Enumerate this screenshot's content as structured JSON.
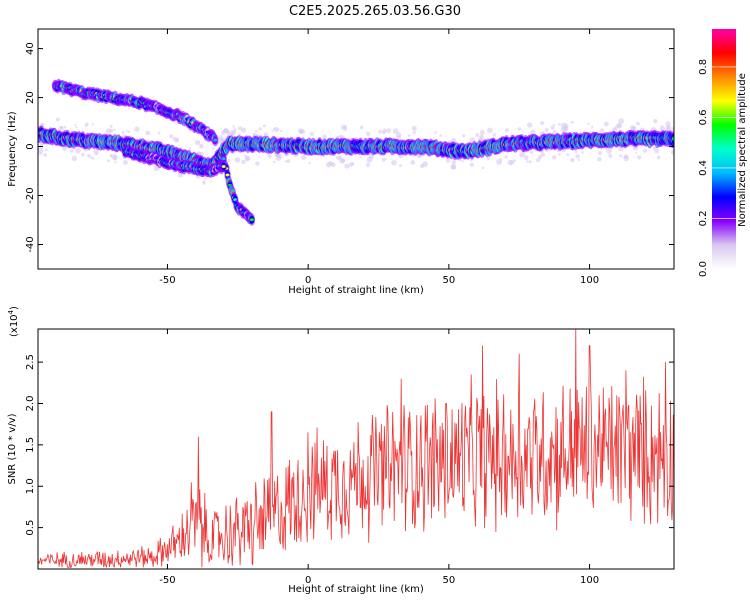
{
  "title": "C2E5.2025.265.03.56.G30",
  "chart_data": [
    {
      "type": "heatmap",
      "xlabel": "Height of straight line (km)",
      "ylabel": "Frequency (Hz)",
      "xlim": [
        -96,
        130
      ],
      "ylim": [
        -50,
        48
      ],
      "xticks": [
        -50,
        0,
        50,
        100
      ],
      "yticks": [
        -40,
        -20,
        0,
        20,
        40
      ],
      "colorbar": {
        "label": "Normalized spectral amplitude",
        "ticks": [
          "0.0",
          "0.2",
          "0.4",
          "0.6",
          "0.8"
        ],
        "range": [
          0,
          0.95
        ],
        "colors": [
          "#ffffff",
          "#d8c8f0",
          "#8800ff",
          "#0000ff",
          "#00bbff",
          "#00ffcc",
          "#00ff00",
          "#ffff00",
          "#ff8800",
          "#ff0000",
          "#ff00aa"
        ]
      },
      "ridges": [
        {
          "name": "main",
          "x": [
            -96,
            -85,
            -75,
            -65,
            -55,
            -45,
            -35,
            -28,
            -20,
            0,
            20,
            40,
            55,
            62,
            70,
            90,
            110,
            130
          ],
          "freq": [
            5,
            3,
            2,
            1,
            -1,
            -4,
            -8,
            1,
            1,
            0,
            0,
            0,
            -2,
            -1,
            1,
            2,
            3,
            3
          ]
        },
        {
          "name": "upper",
          "x": [
            -90,
            -80,
            -70,
            -60,
            -52,
            -45,
            -38,
            -33
          ],
          "freq": [
            25,
            22,
            20,
            18,
            15,
            12,
            7,
            3
          ]
        },
        {
          "name": "lower-branch",
          "x": [
            -30,
            -28,
            -25,
            -20
          ],
          "freq": [
            -5,
            -15,
            -25,
            -30
          ]
        },
        {
          "name": "lower-left",
          "x": [
            -65,
            -55,
            -45,
            -35,
            -30
          ],
          "freq": [
            -2,
            -5,
            -8,
            -10,
            -8
          ]
        }
      ]
    },
    {
      "type": "line",
      "xlabel": "Height of straight line (km)",
      "ylabel": "SNR (10 * v/v)",
      "multiplier": "(x10",
      "multiplier_exp": "4",
      "xlim": [
        -96,
        130
      ],
      "ylim": [
        0,
        2.9
      ],
      "xticks": [
        -50,
        0,
        50,
        100
      ],
      "yticks": [
        "0.5",
        "1.0",
        "1.5",
        "2.0",
        "2.5"
      ],
      "ytick_values": [
        0.5,
        1.0,
        1.5,
        2.0,
        2.5
      ],
      "line_color": "#ee3333",
      "envelope": {
        "x": [
          -96,
          -70,
          -55,
          -45,
          -42,
          -38,
          -35,
          -30,
          -20,
          -10,
          0,
          10,
          20,
          30,
          40,
          50,
          60,
          70,
          80,
          90,
          100,
          110,
          120,
          130
        ],
        "mean": [
          0.1,
          0.12,
          0.15,
          0.35,
          0.55,
          0.5,
          0.35,
          0.4,
          0.5,
          0.7,
          0.95,
          1.05,
          1.15,
          1.2,
          1.3,
          1.3,
          1.35,
          1.35,
          1.4,
          1.4,
          1.45,
          1.45,
          1.4,
          1.4
        ],
        "spread": [
          0.08,
          0.1,
          0.12,
          0.25,
          0.5,
          0.45,
          0.3,
          0.35,
          0.45,
          0.5,
          0.55,
          0.6,
          0.65,
          0.7,
          0.72,
          0.75,
          0.75,
          0.75,
          0.75,
          0.75,
          0.75,
          0.75,
          0.75,
          0.75
        ]
      },
      "peaks": [
        {
          "x": -39,
          "y": 1.6
        },
        {
          "x": -13,
          "y": 1.9
        },
        {
          "x": 0,
          "y": 1.65
        },
        {
          "x": 33,
          "y": 2.3
        },
        {
          "x": 49,
          "y": 2.0
        },
        {
          "x": 62,
          "y": 2.7
        },
        {
          "x": 75,
          "y": 2.6
        },
        {
          "x": 95,
          "y": 2.9
        },
        {
          "x": 100,
          "y": 2.7
        },
        {
          "x": 113,
          "y": 2.4
        },
        {
          "x": 127,
          "y": 2.5
        }
      ]
    }
  ]
}
